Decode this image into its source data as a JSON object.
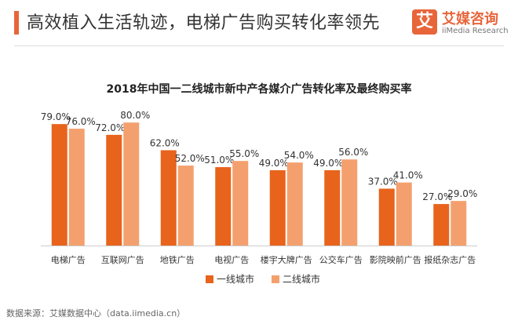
{
  "header": {
    "title": "高效植入生活轨迹，电梯广告购买转化率领先",
    "accent_color": "#e8653a",
    "brand_mark": "艾",
    "brand_name": "艾媒咨询",
    "brand_sub": "iiMedia Research"
  },
  "chart_data": {
    "type": "bar",
    "title": "2018年中国一二线城市新中产各媒介广告转化率及最终购买率",
    "categories": [
      "电梯广告",
      "互联网广告",
      "地铁广告",
      "电视广告",
      "楼宇大牌广告",
      "公交车广告",
      "影院映前广告",
      "报纸杂志广告"
    ],
    "series": [
      {
        "name": "一线城市",
        "color": "#e8631c",
        "values": [
          79.0,
          72.0,
          62.0,
          51.0,
          49.0,
          49.0,
          37.0,
          27.0
        ]
      },
      {
        "name": "二线城市",
        "color": "#f4a06e",
        "values": [
          76.0,
          80.0,
          52.0,
          55.0,
          54.0,
          56.0,
          41.0,
          29.0
        ]
      }
    ],
    "value_format": "percent_1dp",
    "ylim": [
      0,
      100
    ],
    "grid": false,
    "legend_position": "bottom"
  },
  "footer": {
    "source": "数据来源：艾媒数据中心（data.iimedia.cn）"
  }
}
